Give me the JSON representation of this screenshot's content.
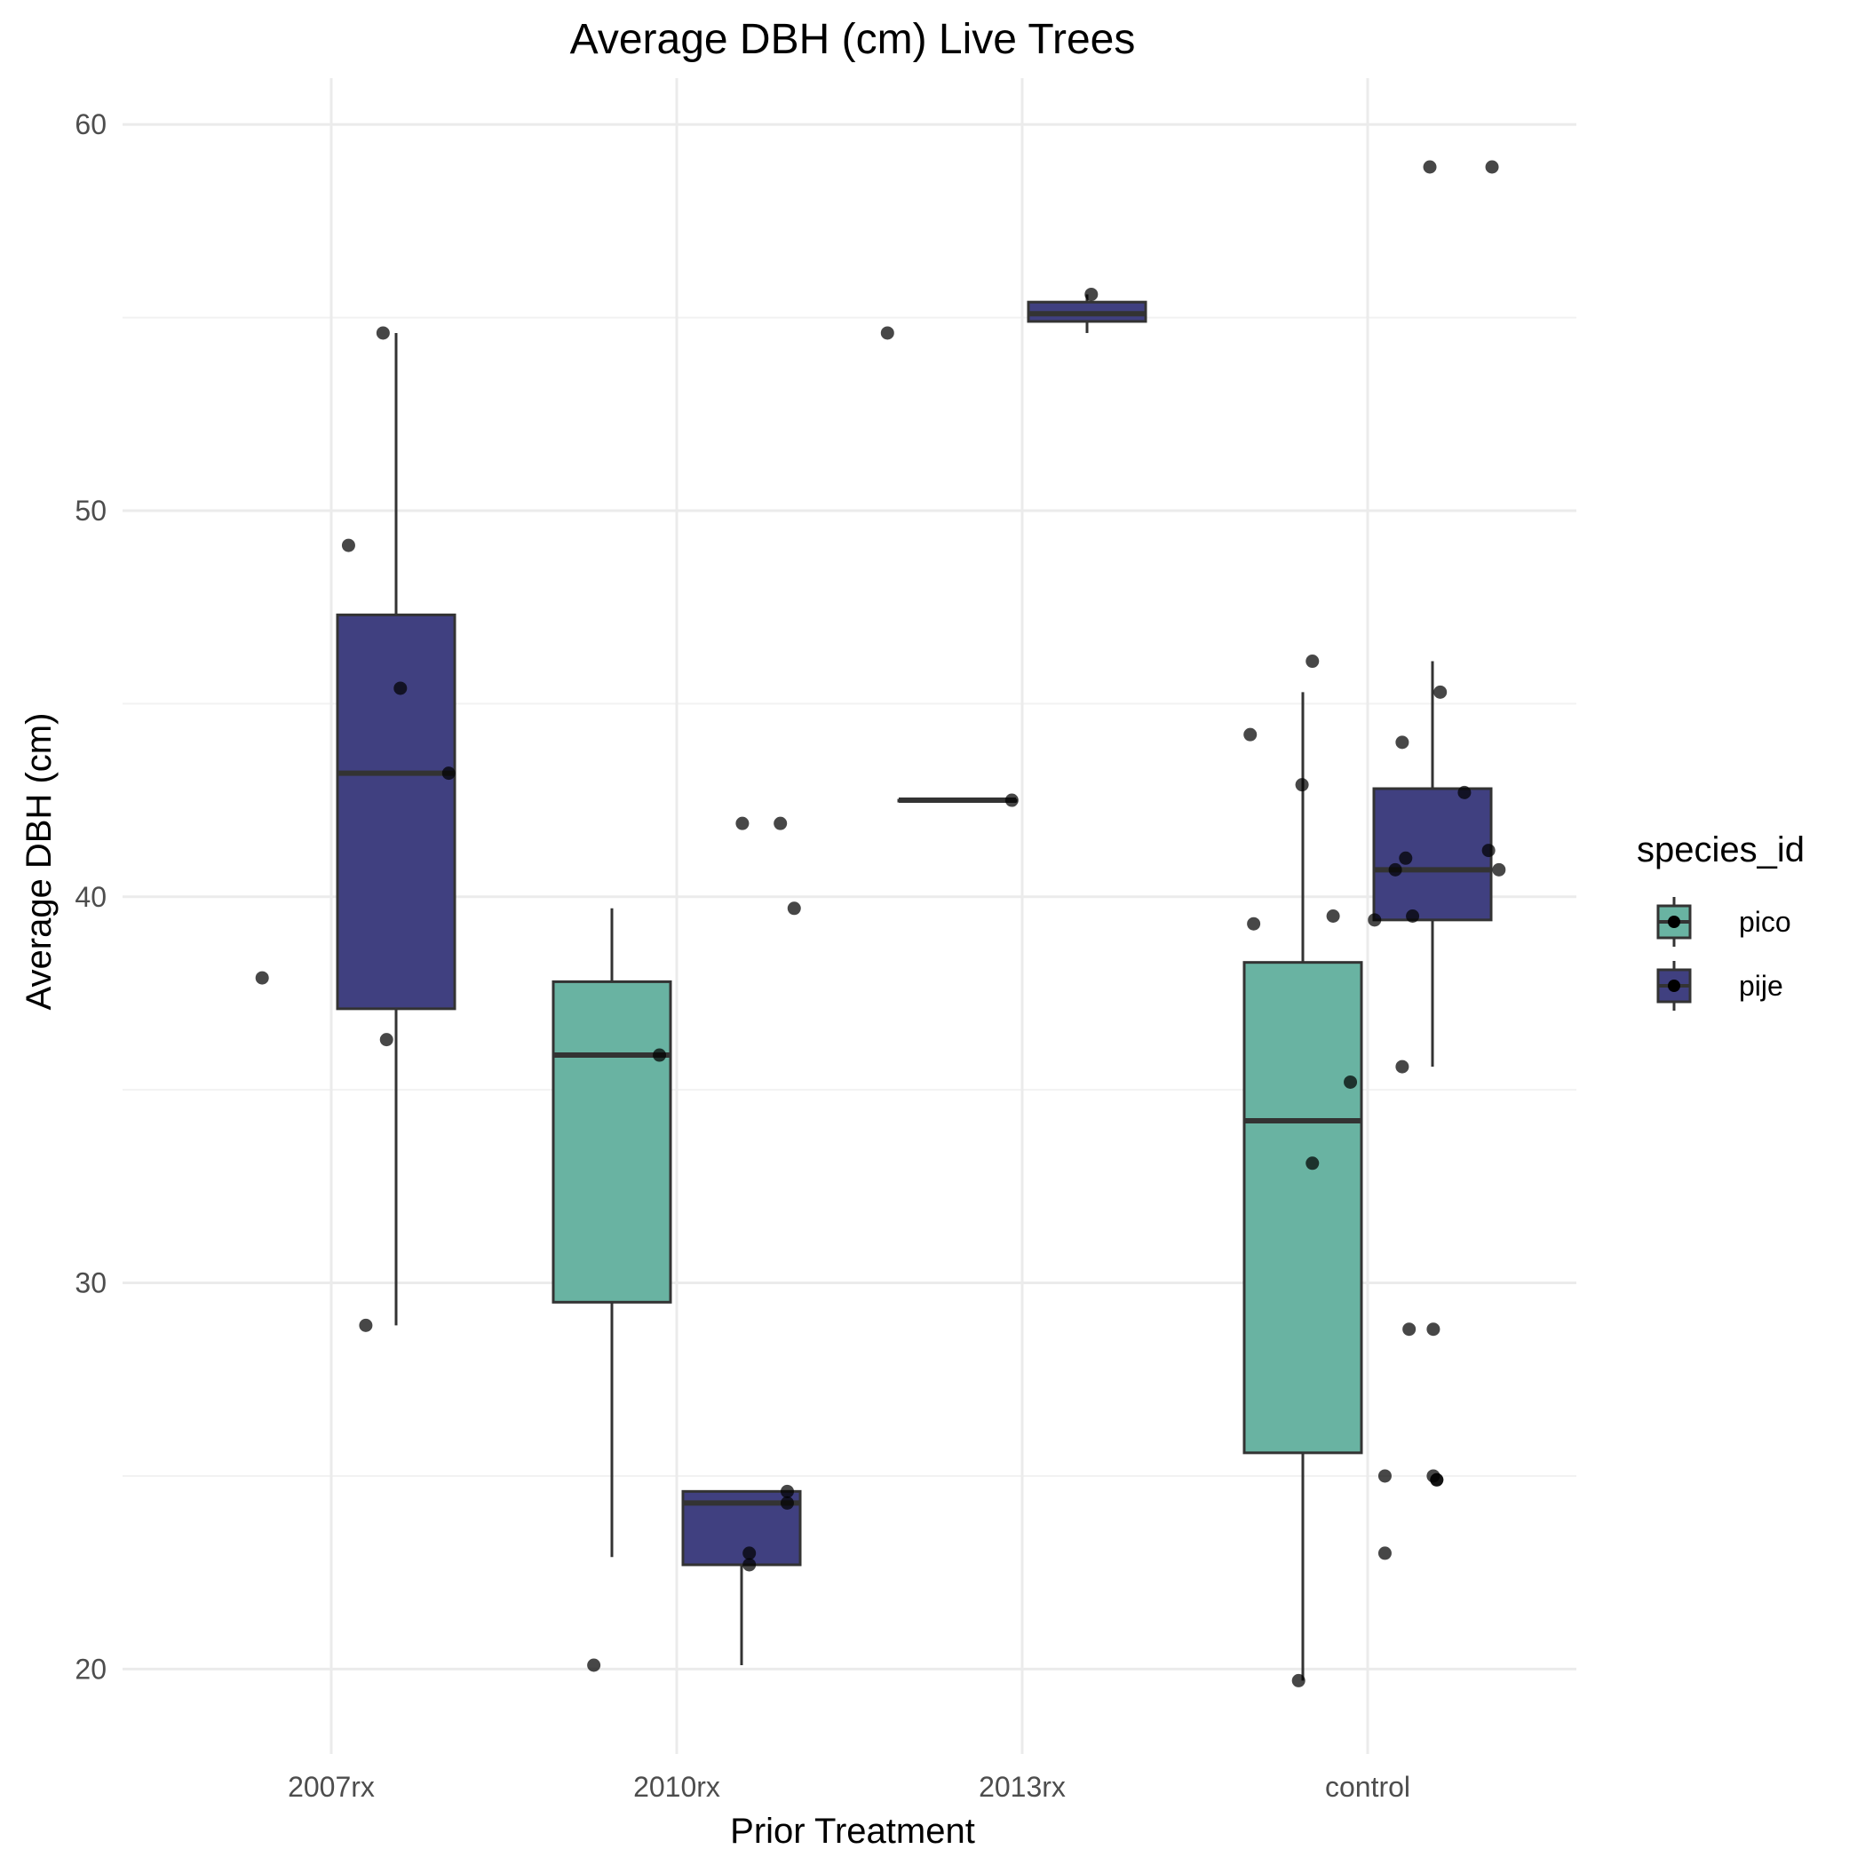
{
  "chart_data": {
    "type": "boxplot",
    "title": "Average DBH (cm) Live Trees",
    "xlabel": "Prior Treatment",
    "ylabel": "Average DBH (cm)",
    "ylim": [
      17.8,
      61.2
    ],
    "y_ticks": [
      20,
      30,
      40,
      50,
      60
    ],
    "categories": [
      "2007rx",
      "2010rx",
      "2013rx",
      "control"
    ],
    "grid": true,
    "legend": {
      "title": "species_id",
      "placement": "right",
      "entries": [
        {
          "name": "pico",
          "color": "#69b3a2"
        },
        {
          "name": "pije",
          "color": "#404080"
        }
      ]
    },
    "series": [
      {
        "name": "pico",
        "color": "#69b3a2",
        "boxes": [
          {
            "category": "2010rx",
            "whisker_low": 22.9,
            "q1": 29.5,
            "median": 35.9,
            "q3": 37.8,
            "whisker_high": 39.7
          },
          {
            "category": "2013rx",
            "whisker_low": 42.5,
            "q1": 42.5,
            "median": 42.5,
            "q3": 42.5,
            "whisker_high": 42.5
          },
          {
            "category": "control",
            "whisker_low": 19.7,
            "q1": 25.6,
            "median": 34.2,
            "q3": 38.3,
            "whisker_high": 45.3
          }
        ]
      },
      {
        "name": "pije",
        "color": "#404080",
        "boxes": [
          {
            "category": "2007rx",
            "whisker_low": 28.9,
            "q1": 37.1,
            "median": 43.2,
            "q3": 47.3,
            "whisker_high": 54.6
          },
          {
            "category": "2010rx",
            "whisker_low": 20.1,
            "q1": 22.7,
            "median": 24.3,
            "q3": 24.6,
            "whisker_high": 24.6
          },
          {
            "category": "2013rx",
            "whisker_low": 54.6,
            "q1": 54.9,
            "median": 55.1,
            "q3": 55.4,
            "whisker_high": 55.6
          },
          {
            "category": "control",
            "whisker_low": 35.6,
            "q1": 39.4,
            "median": 40.7,
            "q3": 42.8,
            "whisker_high": 46.1
          }
        ]
      }
    ],
    "points": [
      {
        "category": "2007rx",
        "jitter": -0.2,
        "y": 37.9
      },
      {
        "category": "2007rx",
        "jitter": 0.05,
        "y": 49.1
      },
      {
        "category": "2007rx",
        "jitter": 0.1,
        "y": 28.9
      },
      {
        "category": "2007rx",
        "jitter": 0.15,
        "y": 54.6
      },
      {
        "category": "2007rx",
        "jitter": 0.16,
        "y": 36.3
      },
      {
        "category": "2007rx",
        "jitter": 0.2,
        "y": 45.4
      },
      {
        "category": "2007rx",
        "jitter": 0.34,
        "y": 43.2
      },
      {
        "category": "2010rx",
        "jitter": -0.24,
        "y": 20.1
      },
      {
        "category": "2010rx",
        "jitter": -0.05,
        "y": 35.9
      },
      {
        "category": "2010rx",
        "jitter": 0.19,
        "y": 41.9
      },
      {
        "category": "2010rx",
        "jitter": 0.21,
        "y": 22.7
      },
      {
        "category": "2010rx",
        "jitter": 0.21,
        "y": 23.0
      },
      {
        "category": "2010rx",
        "jitter": 0.3,
        "y": 41.9
      },
      {
        "category": "2010rx",
        "jitter": 0.32,
        "y": 24.6
      },
      {
        "category": "2010rx",
        "jitter": 0.32,
        "y": 24.3
      },
      {
        "category": "2010rx",
        "jitter": 0.34,
        "y": 39.7
      },
      {
        "category": "2013rx",
        "jitter": -0.39,
        "y": 54.6
      },
      {
        "category": "2013rx",
        "jitter": -0.03,
        "y": 42.5
      },
      {
        "category": "2013rx",
        "jitter": 0.2,
        "y": 55.6
      },
      {
        "category": "control",
        "jitter": -0.34,
        "y": 44.2
      },
      {
        "category": "control",
        "jitter": -0.33,
        "y": 39.3
      },
      {
        "category": "control",
        "jitter": -0.2,
        "y": 19.7
      },
      {
        "category": "control",
        "jitter": -0.19,
        "y": 42.9
      },
      {
        "category": "control",
        "jitter": -0.16,
        "y": 46.1
      },
      {
        "category": "control",
        "jitter": -0.16,
        "y": 33.1
      },
      {
        "category": "control",
        "jitter": -0.1,
        "y": 39.5
      },
      {
        "category": "control",
        "jitter": -0.05,
        "y": 35.2
      },
      {
        "category": "control",
        "jitter": 0.02,
        "y": 39.4
      },
      {
        "category": "control",
        "jitter": 0.05,
        "y": 25.0
      },
      {
        "category": "control",
        "jitter": 0.05,
        "y": 23.0
      },
      {
        "category": "control",
        "jitter": 0.08,
        "y": 40.7
      },
      {
        "category": "control",
        "jitter": 0.1,
        "y": 44.0
      },
      {
        "category": "control",
        "jitter": 0.1,
        "y": 35.6
      },
      {
        "category": "control",
        "jitter": 0.11,
        "y": 41.0
      },
      {
        "category": "control",
        "jitter": 0.12,
        "y": 28.8
      },
      {
        "category": "control",
        "jitter": 0.13,
        "y": 39.5
      },
      {
        "category": "control",
        "jitter": 0.18,
        "y": 58.9
      },
      {
        "category": "control",
        "jitter": 0.19,
        "y": 28.8
      },
      {
        "category": "control",
        "jitter": 0.19,
        "y": 25.0
      },
      {
        "category": "control",
        "jitter": 0.2,
        "y": 24.9
      },
      {
        "category": "control",
        "jitter": 0.2,
        "y": 24.9
      },
      {
        "category": "control",
        "jitter": 0.21,
        "y": 45.3
      },
      {
        "category": "control",
        "jitter": 0.28,
        "y": 42.7
      },
      {
        "category": "control",
        "jitter": 0.35,
        "y": 41.2
      },
      {
        "category": "control",
        "jitter": 0.36,
        "y": 58.9
      },
      {
        "category": "control",
        "jitter": 0.38,
        "y": 40.7
      }
    ]
  }
}
